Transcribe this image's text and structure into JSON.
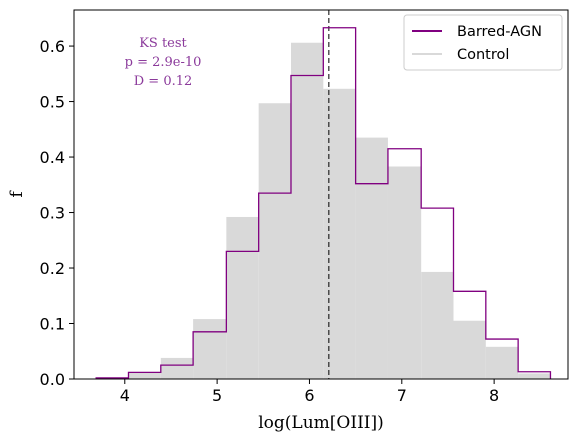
{
  "chart_data": {
    "type": "histogram",
    "xlabel": "log(Lum[OIII])",
    "ylabel": "f",
    "xlim": [
      3.45,
      8.8
    ],
    "ylim": [
      0,
      0.665
    ],
    "xticks": [
      4,
      5,
      6,
      7,
      8
    ],
    "yticks": [
      0.0,
      0.1,
      0.2,
      0.3,
      0.4,
      0.5,
      0.6
    ],
    "bin_edges": [
      3.69,
      4.04,
      4.39,
      4.74,
      5.1,
      5.45,
      5.8,
      6.15,
      6.5,
      6.85,
      7.21,
      7.56,
      7.91,
      8.26,
      8.61
    ],
    "series": [
      {
        "name": "Barred-AGN",
        "style": "step",
        "color": "#800080",
        "values": [
          0.002,
          0.012,
          0.025,
          0.085,
          0.23,
          0.335,
          0.547,
          0.633,
          0.352,
          0.415,
          0.308,
          0.158,
          0.072,
          0.013
        ]
      },
      {
        "name": "Control",
        "style": "filled",
        "color": "#d9d9d9",
        "values": [
          0.0,
          0.012,
          0.038,
          0.108,
          0.292,
          0.497,
          0.606,
          0.523,
          0.435,
          0.383,
          0.193,
          0.105,
          0.058,
          0.01
        ]
      }
    ],
    "vline": {
      "x": 6.21,
      "style": "dashed",
      "color": "#000000"
    },
    "annotation": {
      "color": "#8b3a9b",
      "lines": [
        "KS test",
        "p = 2.9e-10",
        "D = 0.12"
      ]
    },
    "legend": {
      "placement": "top-right"
    },
    "grid": false
  }
}
